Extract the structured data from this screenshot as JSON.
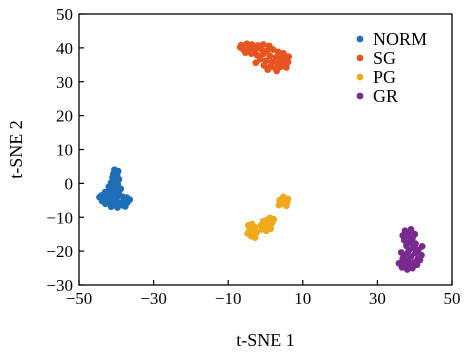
{
  "chart_data": {
    "type": "scatter",
    "xlabel": "t-SNE 1",
    "ylabel": "t-SNE 2",
    "xlim": [
      -50,
      50
    ],
    "ylim": [
      -30,
      50
    ],
    "xticks": [
      -50,
      -30,
      -10,
      10,
      30,
      50
    ],
    "yticks": [
      -30,
      -20,
      -10,
      0,
      10,
      20,
      30,
      40,
      50
    ],
    "xtick_labels": [
      "−50",
      "−30",
      "−10",
      "10",
      "30",
      "50"
    ],
    "ytick_labels": [
      "−30",
      "−20",
      "−10",
      "0",
      "10",
      "20",
      "30",
      "40",
      "50"
    ],
    "grid": false,
    "legend_position": "top-right",
    "series": [
      {
        "name": "NORM",
        "color": "#1f6fb8",
        "points": [
          [
            -40.5,
            4.0
          ],
          [
            -39.5,
            3.6
          ],
          [
            -40.8,
            2.8
          ],
          [
            -39.8,
            2.5
          ],
          [
            -41.0,
            1.8
          ],
          [
            -40.2,
            1.5
          ],
          [
            -39.3,
            1.2
          ],
          [
            -40.6,
            0.6
          ],
          [
            -41.4,
            0.2
          ],
          [
            -39.6,
            -0.2
          ],
          [
            -40.9,
            -0.8
          ],
          [
            -42.0,
            -1.0
          ],
          [
            -40.1,
            -1.4
          ],
          [
            -38.8,
            -1.6
          ],
          [
            -41.6,
            -2.2
          ],
          [
            -43.0,
            -2.6
          ],
          [
            -39.4,
            -2.8
          ],
          [
            -40.7,
            -3.0
          ],
          [
            -42.4,
            -3.4
          ],
          [
            -44.0,
            -3.6
          ],
          [
            -41.2,
            -3.8
          ],
          [
            -38.4,
            -3.9
          ],
          [
            -37.2,
            -4.2
          ],
          [
            -39.9,
            -4.4
          ],
          [
            -43.4,
            -4.6
          ],
          [
            -42.2,
            -4.9
          ],
          [
            -36.4,
            -4.8
          ],
          [
            -40.4,
            -5.1
          ],
          [
            -38.0,
            -5.3
          ],
          [
            -41.8,
            -5.6
          ],
          [
            -39.2,
            -5.9
          ],
          [
            -42.9,
            -6.0
          ],
          [
            -40.9,
            -6.3
          ],
          [
            -38.6,
            -6.4
          ],
          [
            -41.4,
            -6.9
          ],
          [
            -39.7,
            -7.1
          ],
          [
            -37.6,
            -6.8
          ],
          [
            -43.8,
            -5.2
          ],
          [
            -44.5,
            -4.1
          ],
          [
            -37.0,
            -5.6
          ]
        ]
      },
      {
        "name": "SG",
        "color": "#e8541e",
        "points": [
          [
            -6.5,
            40.8
          ],
          [
            -5.0,
            41.2
          ],
          [
            -3.6,
            41.0
          ],
          [
            -2.0,
            40.7
          ],
          [
            -0.6,
            41.0
          ],
          [
            1.0,
            40.6
          ],
          [
            -6.0,
            39.6
          ],
          [
            -4.4,
            39.9
          ],
          [
            -2.8,
            39.4
          ],
          [
            -1.2,
            39.7
          ],
          [
            0.4,
            39.2
          ],
          [
            2.0,
            39.5
          ],
          [
            3.4,
            38.8
          ],
          [
            4.8,
            38.4
          ],
          [
            -5.4,
            38.6
          ],
          [
            -3.8,
            38.3
          ],
          [
            -2.2,
            37.8
          ],
          [
            -0.6,
            38.2
          ],
          [
            1.2,
            37.6
          ],
          [
            2.8,
            37.2
          ],
          [
            4.2,
            37.0
          ],
          [
            5.4,
            36.6
          ],
          [
            -1.4,
            36.6
          ],
          [
            0.2,
            36.2
          ],
          [
            1.8,
            35.8
          ],
          [
            3.4,
            35.4
          ],
          [
            4.8,
            35.2
          ],
          [
            -0.4,
            34.8
          ],
          [
            1.2,
            34.4
          ],
          [
            2.6,
            34.0
          ],
          [
            4.0,
            34.4
          ],
          [
            5.6,
            34.2
          ],
          [
            6.0,
            35.8
          ],
          [
            6.2,
            37.4
          ],
          [
            -6.8,
            40.2
          ],
          [
            0.6,
            33.6
          ],
          [
            3.0,
            33.2
          ],
          [
            -2.6,
            35.6
          ]
        ]
      },
      {
        "name": "PG",
        "color": "#f0a81c",
        "points": [
          [
            -4.6,
            -12.4
          ],
          [
            -3.6,
            -12.0
          ],
          [
            -4.2,
            -13.4
          ],
          [
            -2.8,
            -13.0
          ],
          [
            -3.4,
            -14.2
          ],
          [
            -4.8,
            -14.8
          ],
          [
            -2.4,
            -14.6
          ],
          [
            -3.8,
            -15.6
          ],
          [
            -2.8,
            -16.0
          ],
          [
            -1.2,
            -12.4
          ],
          [
            -0.6,
            -11.2
          ],
          [
            0.4,
            -10.8
          ],
          [
            1.2,
            -10.2
          ],
          [
            -0.2,
            -12.8
          ],
          [
            0.8,
            -12.4
          ],
          [
            1.8,
            -11.6
          ],
          [
            2.2,
            -10.6
          ],
          [
            0.2,
            -14.0
          ],
          [
            1.4,
            -13.4
          ],
          [
            -1.0,
            -13.6
          ],
          [
            3.8,
            -5.0
          ],
          [
            4.6,
            -4.4
          ],
          [
            5.4,
            -4.8
          ],
          [
            4.2,
            -5.8
          ],
          [
            5.0,
            -6.0
          ],
          [
            5.8,
            -5.6
          ],
          [
            3.6,
            -6.4
          ],
          [
            4.8,
            -4.0
          ],
          [
            6.0,
            -4.6
          ],
          [
            5.6,
            -6.6
          ]
        ]
      },
      {
        "name": "GR",
        "color": "#7a2a8e",
        "points": [
          [
            37.4,
            -14.0
          ],
          [
            38.8,
            -14.2
          ],
          [
            40.0,
            -15.0
          ],
          [
            36.8,
            -15.4
          ],
          [
            38.2,
            -15.6
          ],
          [
            39.4,
            -16.2
          ],
          [
            37.2,
            -16.8
          ],
          [
            38.8,
            -17.4
          ],
          [
            40.2,
            -17.8
          ],
          [
            37.8,
            -18.4
          ],
          [
            39.6,
            -19.0
          ],
          [
            41.0,
            -19.6
          ],
          [
            38.4,
            -19.8
          ],
          [
            40.2,
            -20.6
          ],
          [
            41.8,
            -21.2
          ],
          [
            37.6,
            -21.0
          ],
          [
            39.0,
            -21.6
          ],
          [
            40.8,
            -22.4
          ],
          [
            36.8,
            -22.2
          ],
          [
            38.2,
            -22.8
          ],
          [
            39.8,
            -23.4
          ],
          [
            37.2,
            -23.6
          ],
          [
            38.6,
            -24.2
          ],
          [
            36.6,
            -24.8
          ],
          [
            38.0,
            -25.4
          ],
          [
            39.4,
            -25.0
          ],
          [
            40.6,
            -24.0
          ],
          [
            41.4,
            -22.6
          ],
          [
            36.4,
            -20.4
          ],
          [
            35.8,
            -23.6
          ],
          [
            42.0,
            -18.6
          ],
          [
            39.0,
            -13.6
          ]
        ]
      }
    ]
  }
}
